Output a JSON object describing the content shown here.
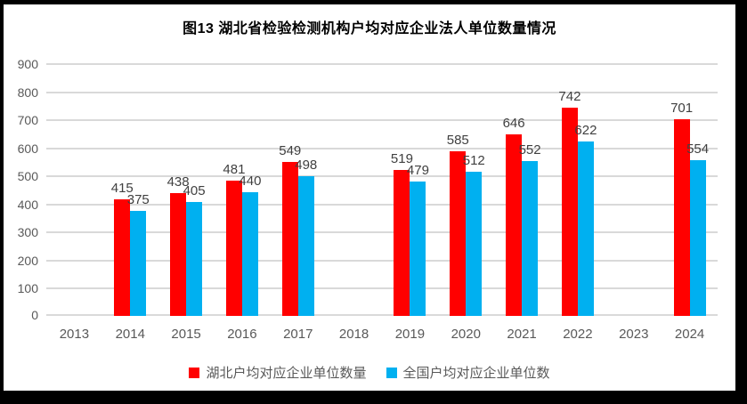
{
  "title": "图13  湖北省检验检测机构户均对应企业法人单位数量情况",
  "colors": {
    "frame_border": "#000000",
    "chart_background": "#ffffff",
    "gridline": "#d9d9d9",
    "axis_text": "#595959",
    "data_label_text": "#404040",
    "series_hubei": "#ff0000",
    "series_national": "#00b0f0"
  },
  "chart_data": {
    "type": "bar",
    "title": "图13  湖北省检验检测机构户均对应企业法人单位数量情况",
    "categories": [
      "2013",
      "2014",
      "2015",
      "2016",
      "2017",
      "2018",
      "2019",
      "2020",
      "2021",
      "2022",
      "2023",
      "2024"
    ],
    "series": [
      {
        "name": "湖北户均对应企业单位数量",
        "color": "#ff0000",
        "values": [
          null,
          415,
          438,
          481,
          549,
          null,
          519,
          585,
          646,
          742,
          null,
          701
        ]
      },
      {
        "name": "全国户均对应企业单位数",
        "color": "#00b0f0",
        "values": [
          null,
          375,
          405,
          440,
          498,
          null,
          479,
          512,
          552,
          622,
          null,
          554
        ]
      }
    ],
    "xlabel": "",
    "ylabel": "",
    "ylim": [
      0,
      900
    ],
    "ytick_step": 100,
    "grid": true,
    "legend_position": "bottom",
    "data_labels": true
  }
}
